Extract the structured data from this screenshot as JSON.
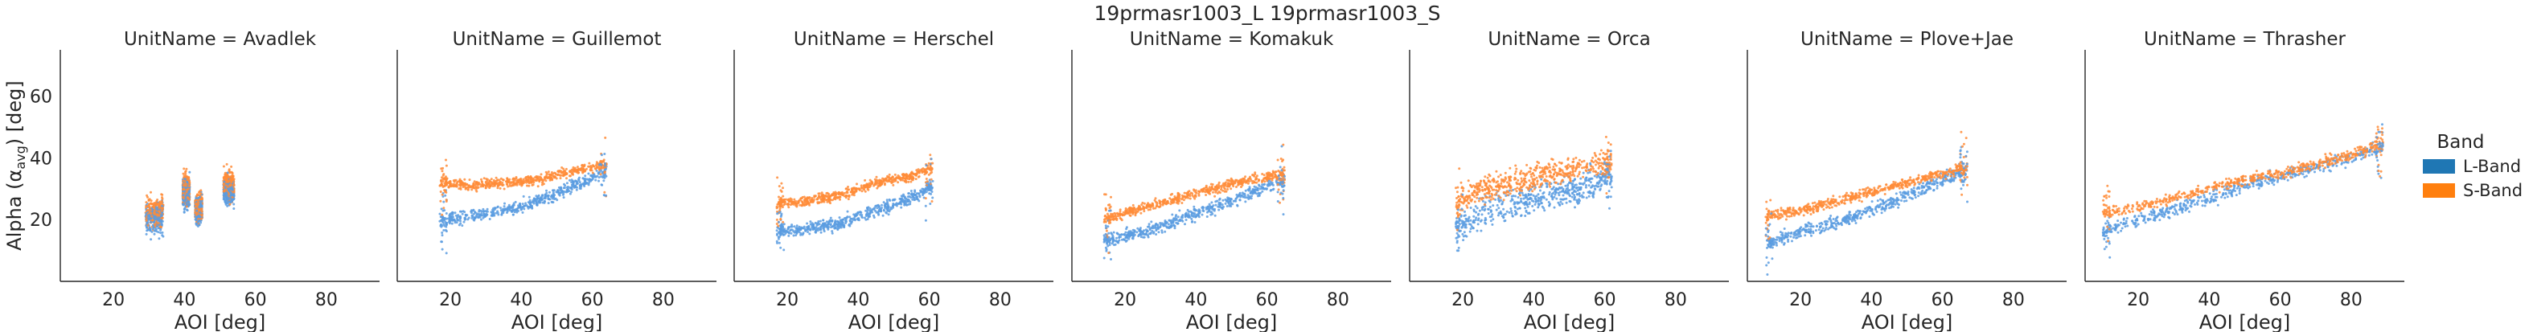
{
  "figure": {
    "suptitle": "19prmasr1003_L 19prmasr1003_S"
  },
  "chart_data": {
    "type": "scatter",
    "title": "19prmasr1003_L 19prmasr1003_S",
    "xlabel": "AOI [deg]",
    "ylabel": "Alpha (α_avg) [deg]",
    "ylabel_parts": {
      "main": "Alpha (α",
      "sub": "avg",
      "tail": ") [deg]"
    },
    "xlim": [
      5,
      95
    ],
    "ylim": [
      0,
      75
    ],
    "xticks": [
      20,
      40,
      60,
      80
    ],
    "yticks": [
      20,
      40,
      60
    ],
    "grid": false,
    "legend": {
      "title": "Band",
      "placement": "right",
      "entries": [
        {
          "label": "L-Band",
          "color": "#1f77b4"
        },
        {
          "label": "S-Band",
          "color": "#ff7f0e"
        }
      ]
    },
    "series_colors": {
      "L-Band": "#5b9ce0",
      "S-Band": "#ff8c38"
    },
    "panels": [
      {
        "title": "UnitName = Avadlek",
        "clusters": [
          {
            "x": [
              29,
              34
            ],
            "L": [
              20,
              21
            ],
            "S": [
              22,
              23
            ]
          },
          {
            "x": [
              39.5,
              41.5
            ],
            "L": [
              27,
              30
            ],
            "S": [
              28,
              32
            ]
          },
          {
            "x": [
              43,
              45
            ],
            "L": [
              22,
              24
            ],
            "S": [
              23,
              25
            ]
          },
          {
            "x": [
              51,
              54
            ],
            "L": [
              28,
              30
            ],
            "S": [
              30,
              33
            ]
          }
        ]
      },
      {
        "title": "UnitName = Guillemot",
        "L": [
          [
            17,
            20
          ],
          [
            25,
            21
          ],
          [
            35,
            23
          ],
          [
            45,
            26
          ],
          [
            55,
            31
          ],
          [
            64,
            35
          ]
        ],
        "S": [
          [
            17,
            32
          ],
          [
            25,
            31
          ],
          [
            35,
            32
          ],
          [
            45,
            33
          ],
          [
            55,
            36
          ],
          [
            64,
            38
          ]
        ]
      },
      {
        "title": "UnitName = Herschel",
        "L": [
          [
            17,
            16
          ],
          [
            25,
            17
          ],
          [
            35,
            19
          ],
          [
            45,
            23
          ],
          [
            55,
            27
          ],
          [
            61,
            31
          ]
        ],
        "S": [
          [
            17,
            25
          ],
          [
            25,
            26
          ],
          [
            35,
            28
          ],
          [
            45,
            32
          ],
          [
            55,
            34
          ],
          [
            61,
            37
          ]
        ]
      },
      {
        "title": "UnitName = Komakuk",
        "L": [
          [
            14,
            13
          ],
          [
            25,
            16
          ],
          [
            35,
            20
          ],
          [
            45,
            24
          ],
          [
            55,
            28
          ],
          [
            65,
            33
          ]
        ],
        "S": [
          [
            14,
            20
          ],
          [
            25,
            24
          ],
          [
            35,
            27
          ],
          [
            45,
            30
          ],
          [
            55,
            33
          ],
          [
            65,
            35
          ]
        ]
      },
      {
        "title": "UnitName = Orca",
        "L": [
          [
            18,
            17
          ],
          [
            25,
            22
          ],
          [
            35,
            25
          ],
          [
            45,
            28
          ],
          [
            55,
            31
          ],
          [
            62,
            34
          ]
        ],
        "S": [
          [
            18,
            25
          ],
          [
            25,
            30
          ],
          [
            35,
            32
          ],
          [
            45,
            35
          ],
          [
            55,
            37
          ],
          [
            62,
            39
          ]
        ]
      },
      {
        "title": "UnitName = Plove+Jae",
        "L": [
          [
            10,
            12
          ],
          [
            20,
            16
          ],
          [
            30,
            19
          ],
          [
            40,
            23
          ],
          [
            50,
            28
          ],
          [
            60,
            33
          ],
          [
            67,
            36
          ]
        ],
        "S": [
          [
            10,
            21
          ],
          [
            20,
            23
          ],
          [
            30,
            26
          ],
          [
            40,
            29
          ],
          [
            50,
            32
          ],
          [
            60,
            35
          ],
          [
            67,
            37
          ]
        ]
      },
      {
        "title": "UnitName = Thrasher",
        "L": [
          [
            10,
            16
          ],
          [
            20,
            20
          ],
          [
            30,
            23
          ],
          [
            40,
            27
          ],
          [
            50,
            31
          ],
          [
            60,
            34
          ],
          [
            70,
            37
          ],
          [
            80,
            40
          ],
          [
            89,
            44
          ]
        ],
        "S": [
          [
            10,
            22
          ],
          [
            20,
            24
          ],
          [
            30,
            27
          ],
          [
            40,
            30
          ],
          [
            50,
            33
          ],
          [
            60,
            35
          ],
          [
            70,
            38
          ],
          [
            80,
            41
          ],
          [
            89,
            45
          ]
        ]
      }
    ]
  }
}
